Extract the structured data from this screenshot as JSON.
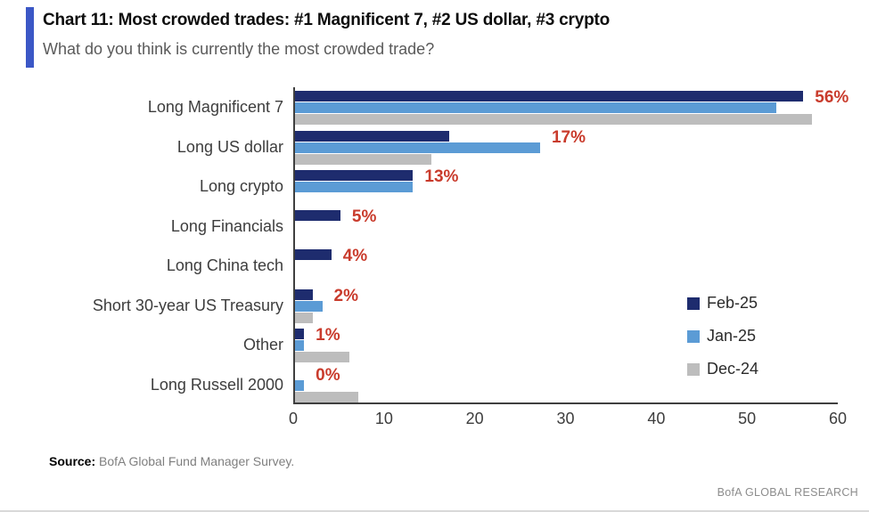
{
  "header": {
    "title": "Chart 11: Most crowded trades: #1 Magnificent 7, #2 US dollar, #3 crypto",
    "subtitle": "What do you think is currently the most crowded trade?",
    "accent_color": "#3b57c6"
  },
  "chart_data": {
    "type": "bar",
    "orientation": "horizontal",
    "title": "Chart 11: Most crowded trades: #1 Magnificent 7, #2 US dollar, #3 crypto",
    "subtitle": "What do you think is currently the most crowded trade?",
    "categories": [
      "Long Magnificent 7",
      "Long US dollar",
      "Long crypto",
      "Long Financials",
      "Long China tech",
      "Short 30-year US Treasury",
      "Other",
      "Long Russell 2000"
    ],
    "series": [
      {
        "name": "Feb-25",
        "color": "#1e2c6e",
        "values": [
          56,
          17,
          13,
          5,
          4,
          2,
          1,
          0
        ]
      },
      {
        "name": "Jan-25",
        "color": "#5b9bd5",
        "values": [
          53,
          27,
          13,
          0,
          0,
          3,
          1,
          1
        ]
      },
      {
        "name": "Dec-24",
        "color": "#bdbdbd",
        "values": [
          57,
          15,
          0,
          0,
          0,
          2,
          6,
          7
        ]
      }
    ],
    "data_labels": [
      "56%",
      "17%",
      "13%",
      "5%",
      "4%",
      "2%",
      "1%",
      "0%"
    ],
    "data_label_color": "#c93b2c",
    "xticks": [
      0,
      10,
      20,
      30,
      40,
      50,
      60
    ],
    "xlim": [
      0,
      60
    ],
    "grid": false,
    "legend_position": "right-middle",
    "axis_color": "#3f3f3f"
  },
  "footer": {
    "source_label": "Source:",
    "source_text": " BofA Global Fund Manager Survey.",
    "brand": "BofA GLOBAL RESEARCH"
  }
}
